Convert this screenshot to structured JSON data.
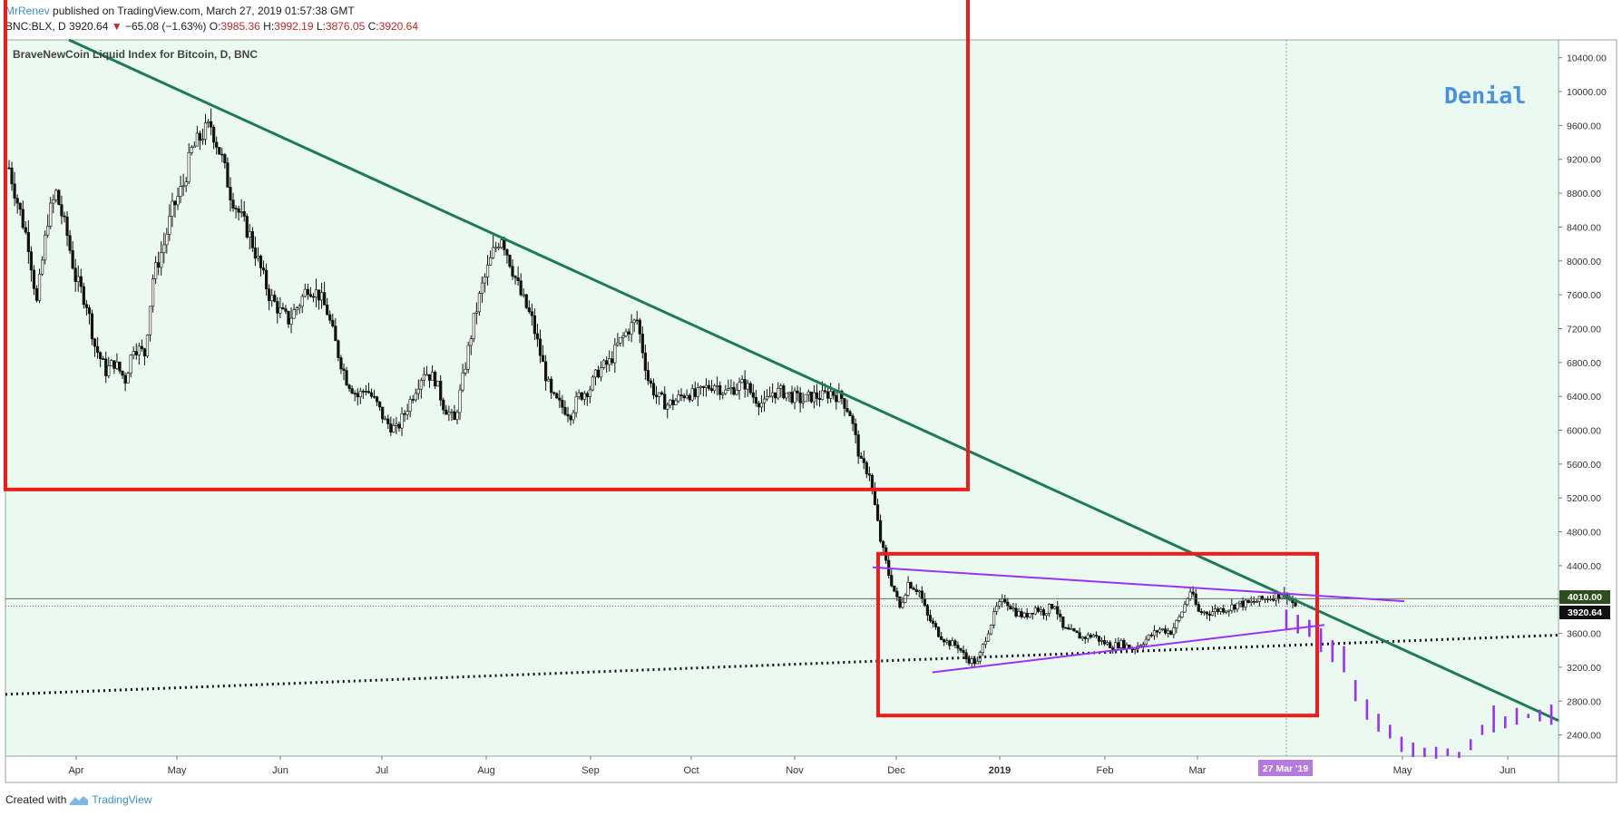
{
  "header": {
    "author": "MrRenev",
    "published": "published on TradingView.com, March 27, 2019 01:57:38 GMT"
  },
  "ohlc": {
    "symbol": "BNC:BLX, D",
    "last": "3920.64",
    "change": "−65.08 (−1.63%)",
    "o_label": "O:",
    "o": "3985.36",
    "h_label": "H:",
    "h": "3992.19",
    "l_label": "L:",
    "l": "3876.05",
    "c_label": "C:",
    "c": "3920.64"
  },
  "footer": {
    "created_with": "Created with",
    "brand": "TradingView"
  },
  "colors": {
    "plot_bg": "#eafaf1",
    "trend": "#1f7a5a",
    "box": "#ef1c1c",
    "triangle": "#9b30ff",
    "projection": "#9b30ff",
    "denial": "#4a90e2"
  },
  "chart_data": {
    "type": "candlestick",
    "title": "BraveNewCoin Liquid Index for Bitcoin, D, BNC",
    "annotation_text": "Denial",
    "y_ticks": [
      "10400.00",
      "10000.00",
      "9600.00",
      "9200.00",
      "8800.00",
      "8400.00",
      "8000.00",
      "7600.00",
      "7200.00",
      "6800.00",
      "6400.00",
      "6000.00",
      "5600.00",
      "5200.00",
      "4800.00",
      "4400.00",
      "4000.00",
      "3600.00",
      "3200.00",
      "2800.00",
      "2400.00"
    ],
    "x_ticks": [
      "Apr",
      "May",
      "Jun",
      "Jul",
      "Aug",
      "Sep",
      "Oct",
      "Nov",
      "Dec",
      "2019",
      "Feb",
      "Mar",
      "May",
      "Jun"
    ],
    "ylim": [
      2100,
      10800
    ],
    "price_labels": {
      "level": "4010.00",
      "last": "3920.64"
    },
    "cursor_label": "27 Mar '19",
    "close_series": [
      [
        0,
        9100
      ],
      [
        3,
        8700
      ],
      [
        7,
        8200
      ],
      [
        10,
        7500
      ],
      [
        14,
        8500
      ],
      [
        17,
        8800
      ],
      [
        21,
        8300
      ],
      [
        24,
        7800
      ],
      [
        28,
        7500
      ],
      [
        31,
        7000
      ],
      [
        35,
        6700
      ],
      [
        38,
        6800
      ],
      [
        42,
        6600
      ],
      [
        45,
        7000
      ],
      [
        49,
        6900
      ],
      [
        52,
        7800
      ],
      [
        56,
        8200
      ],
      [
        59,
        8600
      ],
      [
        63,
        8900
      ],
      [
        66,
        9300
      ],
      [
        70,
        9500
      ],
      [
        73,
        9600
      ],
      [
        77,
        9200
      ],
      [
        80,
        8800
      ],
      [
        84,
        8500
      ],
      [
        87,
        8300
      ],
      [
        91,
        7900
      ],
      [
        94,
        7600
      ],
      [
        98,
        7400
      ],
      [
        101,
        7300
      ],
      [
        105,
        7500
      ],
      [
        108,
        7700
      ],
      [
        112,
        7600
      ],
      [
        115,
        7400
      ],
      [
        119,
        6900
      ],
      [
        122,
        6600
      ],
      [
        126,
        6400
      ],
      [
        129,
        6500
      ],
      [
        133,
        6300
      ],
      [
        136,
        6100
      ],
      [
        140,
        6000
      ],
      [
        143,
        6200
      ],
      [
        147,
        6500
      ],
      [
        150,
        6700
      ],
      [
        154,
        6600
      ],
      [
        157,
        6300
      ],
      [
        161,
        6100
      ],
      [
        164,
        6600
      ],
      [
        168,
        7300
      ],
      [
        171,
        7700
      ],
      [
        175,
        8100
      ],
      [
        178,
        8300
      ],
      [
        182,
        7900
      ],
      [
        185,
        7600
      ],
      [
        189,
        7300
      ],
      [
        192,
        6900
      ],
      [
        196,
        6400
      ],
      [
        199,
        6300
      ],
      [
        203,
        6200
      ],
      [
        206,
        6400
      ],
      [
        210,
        6500
      ],
      [
        213,
        6700
      ],
      [
        217,
        6800
      ],
      [
        220,
        7000
      ],
      [
        224,
        7200
      ],
      [
        227,
        7300
      ],
      [
        231,
        6600
      ],
      [
        234,
        6400
      ],
      [
        238,
        6300
      ],
      [
        241,
        6350
      ],
      [
        245,
        6450
      ],
      [
        248,
        6400
      ],
      [
        252,
        6500
      ],
      [
        255,
        6550
      ],
      [
        259,
        6450
      ],
      [
        262,
        6500
      ],
      [
        266,
        6550
      ],
      [
        269,
        6400
      ],
      [
        273,
        6300
      ],
      [
        276,
        6450
      ],
      [
        280,
        6450
      ],
      [
        283,
        6400
      ],
      [
        287,
        6350
      ],
      [
        290,
        6400
      ],
      [
        294,
        6400
      ],
      [
        297,
        6450
      ],
      [
        301,
        6380
      ],
      [
        304,
        6200
      ],
      [
        308,
        5600
      ],
      [
        311,
        5500
      ],
      [
        315,
        4700
      ],
      [
        318,
        4300
      ],
      [
        322,
        3900
      ],
      [
        325,
        4200
      ],
      [
        329,
        4100
      ],
      [
        332,
        3800
      ],
      [
        336,
        3600
      ],
      [
        339,
        3500
      ],
      [
        343,
        3450
      ],
      [
        346,
        3300
      ],
      [
        350,
        3250
      ],
      [
        353,
        3550
      ],
      [
        357,
        3900
      ],
      [
        360,
        4000
      ],
      [
        364,
        3850
      ],
      [
        367,
        3800
      ],
      [
        371,
        3900
      ],
      [
        374,
        3850
      ],
      [
        378,
        3950
      ],
      [
        381,
        3650
      ],
      [
        385,
        3600
      ],
      [
        388,
        3550
      ],
      [
        392,
        3580
      ],
      [
        395,
        3500
      ],
      [
        399,
        3450
      ],
      [
        402,
        3480
      ],
      [
        406,
        3420
      ],
      [
        409,
        3480
      ],
      [
        413,
        3580
      ],
      [
        416,
        3650
      ],
      [
        420,
        3620
      ],
      [
        423,
        3780
      ],
      [
        427,
        4100
      ],
      [
        430,
        3850
      ],
      [
        434,
        3850
      ],
      [
        437,
        3880
      ],
      [
        441,
        3900
      ],
      [
        444,
        3950
      ],
      [
        448,
        3950
      ],
      [
        451,
        3980
      ],
      [
        455,
        4020
      ],
      [
        458,
        4050
      ],
      [
        462,
        4050
      ],
      [
        465,
        3920
      ]
    ],
    "projection": [
      [
        3880,
        3650
      ],
      [
        3820,
        3600
      ],
      [
        3760,
        3560
      ],
      [
        3660,
        3380
      ],
      [
        3520,
        3260
      ],
      [
        3450,
        3140
      ],
      [
        3050,
        2800
      ],
      [
        2820,
        2580
      ],
      [
        2650,
        2440
      ],
      [
        2520,
        2360
      ],
      [
        2380,
        2200
      ],
      [
        2310,
        2140
      ],
      [
        2250,
        2140
      ],
      [
        2260,
        2120
      ],
      [
        2240,
        2150
      ],
      [
        2200,
        2130
      ],
      [
        2350,
        2220
      ],
      [
        2520,
        2400
      ],
      [
        2750,
        2430
      ],
      [
        2620,
        2480
      ],
      [
        2720,
        2520
      ],
      [
        2650,
        2600
      ],
      [
        2700,
        2560
      ],
      [
        2760,
        2520
      ]
    ]
  }
}
